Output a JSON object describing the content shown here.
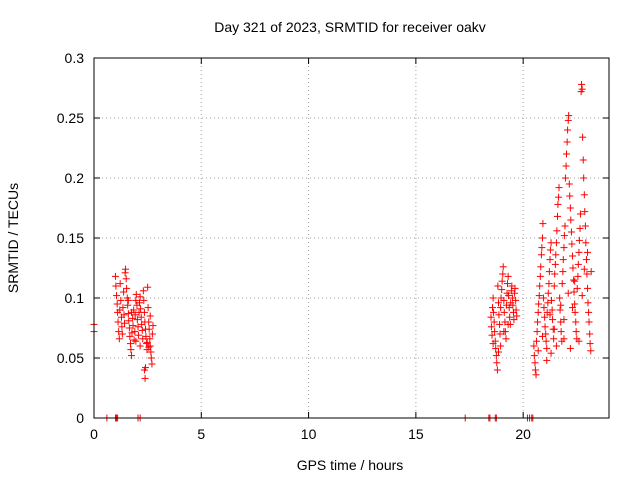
{
  "chart_data": {
    "type": "scatter",
    "title": "Day 321 of 2023, SRMTID for receiver oakv",
    "xlabel": "GPS time / hours",
    "ylabel": "SRMTID / TECUs",
    "xlim": [
      0,
      24
    ],
    "ylim": [
      0,
      0.3
    ],
    "xticks": [
      0,
      5,
      10,
      15,
      20
    ],
    "xtick_labels": [
      "0",
      "5",
      "10",
      "15",
      "20"
    ],
    "yticks": [
      0,
      0.05,
      0.1,
      0.15,
      0.2,
      0.25,
      0.3
    ],
    "ytick_labels": [
      "0",
      "0.05",
      "0.1",
      "0.15",
      "0.2",
      "0.25",
      "0.3"
    ],
    "grid": true,
    "marker": "+",
    "color": "#ff0000",
    "series": [
      {
        "name": "SRMTID",
        "points": [
          [
            0.0,
            0.078
          ],
          [
            0.0,
            0.072
          ],
          [
            0.6,
            0.0
          ],
          [
            1.0,
            0.0
          ],
          [
            1.05,
            0.0
          ],
          [
            1.1,
            0.0
          ],
          [
            2.05,
            0.0
          ],
          [
            2.15,
            0.0
          ],
          [
            17.3,
            0.0
          ],
          [
            18.4,
            0.0
          ],
          [
            18.45,
            0.0
          ],
          [
            18.7,
            0.0
          ],
          [
            18.75,
            0.0
          ],
          [
            20.2,
            0.0
          ],
          [
            20.3,
            0.0
          ],
          [
            20.4,
            0.0
          ],
          [
            20.45,
            0.0
          ],
          [
            1.0,
            0.118
          ],
          [
            1.02,
            0.11
          ],
          [
            1.05,
            0.102
          ],
          [
            1.08,
            0.095
          ],
          [
            1.1,
            0.088
          ],
          [
            1.12,
            0.08
          ],
          [
            1.15,
            0.072
          ],
          [
            1.18,
            0.066
          ],
          [
            1.2,
            0.09
          ],
          [
            1.22,
            0.112
          ],
          [
            1.25,
            0.098
          ],
          [
            1.28,
            0.084
          ],
          [
            1.3,
            0.076
          ],
          [
            1.32,
            0.07
          ],
          [
            1.35,
            0.092
          ],
          [
            1.38,
            0.105
          ],
          [
            1.4,
            0.086
          ],
          [
            1.42,
            0.079
          ],
          [
            1.45,
            0.121
          ],
          [
            1.47,
            0.124
          ],
          [
            1.5,
            0.116
          ],
          [
            1.52,
            0.108
          ],
          [
            1.55,
            0.1
          ],
          [
            1.57,
            0.094
          ],
          [
            1.6,
            0.087
          ],
          [
            1.62,
            0.081
          ],
          [
            1.65,
            0.075
          ],
          [
            1.67,
            0.068
          ],
          [
            1.7,
            0.062
          ],
          [
            1.72,
            0.057
          ],
          [
            1.75,
            0.052
          ],
          [
            1.77,
            0.071
          ],
          [
            1.8,
            0.083
          ],
          [
            1.82,
            0.077
          ],
          [
            1.85,
            0.09
          ],
          [
            1.87,
            0.065
          ],
          [
            1.9,
            0.072
          ],
          [
            1.92,
            0.086
          ],
          [
            1.95,
            0.098
          ],
          [
            1.97,
            0.103
          ],
          [
            2.0,
            0.094
          ],
          [
            2.02,
            0.082
          ],
          [
            2.05,
            0.076
          ],
          [
            2.07,
            0.069
          ],
          [
            2.1,
            0.088
          ],
          [
            2.12,
            0.096
          ],
          [
            2.15,
            0.101
          ],
          [
            2.17,
            0.091
          ],
          [
            2.2,
            0.084
          ],
          [
            2.22,
            0.078
          ],
          [
            2.25,
            0.073
          ],
          [
            2.27,
            0.066
          ],
          [
            2.3,
            0.106
          ],
          [
            2.32,
            0.098
          ],
          [
            2.35,
            0.088
          ],
          [
            2.37,
            0.08
          ],
          [
            2.4,
            0.074
          ],
          [
            2.42,
            0.068
          ],
          [
            2.45,
            0.062
          ],
          [
            2.47,
            0.057
          ],
          [
            2.35,
            0.04
          ],
          [
            2.38,
            0.033
          ],
          [
            2.4,
            0.042
          ],
          [
            2.5,
            0.109
          ],
          [
            2.52,
            0.092
          ],
          [
            2.55,
            0.08
          ],
          [
            2.57,
            0.074
          ],
          [
            2.6,
            0.066
          ],
          [
            2.62,
            0.06
          ],
          [
            2.65,
            0.055
          ],
          [
            2.67,
            0.05
          ],
          [
            2.7,
            0.045
          ],
          [
            2.72,
            0.07
          ],
          [
            2.75,
            0.077
          ],
          [
            2.62,
            0.085
          ],
          [
            2.55,
            0.059
          ],
          [
            2.48,
            0.063
          ],
          [
            1.6,
            0.098
          ],
          [
            1.75,
            0.088
          ],
          [
            1.95,
            0.064
          ],
          [
            2.15,
            0.06
          ],
          [
            18.5,
            0.084
          ],
          [
            18.52,
            0.076
          ],
          [
            18.55,
            0.069
          ],
          [
            18.57,
            0.092
          ],
          [
            18.6,
            0.1
          ],
          [
            18.62,
            0.088
          ],
          [
            18.65,
            0.08
          ],
          [
            18.67,
            0.072
          ],
          [
            18.7,
            0.064
          ],
          [
            18.72,
            0.058
          ],
          [
            18.75,
            0.052
          ],
          [
            18.77,
            0.046
          ],
          [
            18.8,
            0.04
          ],
          [
            18.82,
            0.11
          ],
          [
            18.85,
            0.096
          ],
          [
            18.87,
            0.086
          ],
          [
            18.9,
            0.078
          ],
          [
            18.92,
            0.07
          ],
          [
            18.95,
            0.092
          ],
          [
            18.97,
            0.1
          ],
          [
            19.0,
            0.107
          ],
          [
            19.02,
            0.114
          ],
          [
            19.05,
            0.12
          ],
          [
            19.07,
            0.126
          ],
          [
            19.1,
            0.098
          ],
          [
            19.12,
            0.088
          ],
          [
            19.15,
            0.08
          ],
          [
            19.17,
            0.072
          ],
          [
            19.2,
            0.066
          ],
          [
            19.22,
            0.094
          ],
          [
            19.25,
            0.104
          ],
          [
            19.27,
            0.112
          ],
          [
            19.3,
            0.118
          ],
          [
            19.32,
            0.102
          ],
          [
            19.35,
            0.092
          ],
          [
            19.37,
            0.084
          ],
          [
            19.4,
            0.078
          ],
          [
            19.42,
            0.096
          ],
          [
            19.45,
            0.106
          ],
          [
            19.47,
            0.11
          ],
          [
            19.5,
            0.1
          ],
          [
            19.52,
            0.094
          ],
          [
            19.55,
            0.088
          ],
          [
            19.57,
            0.082
          ],
          [
            19.6,
            0.104
          ],
          [
            19.62,
            0.108
          ],
          [
            19.65,
            0.098
          ],
          [
            19.67,
            0.09
          ],
          [
            19.7,
            0.085
          ],
          [
            18.6,
            0.062
          ],
          [
            18.85,
            0.055
          ],
          [
            18.95,
            0.06
          ],
          [
            19.1,
            0.072
          ],
          [
            19.3,
            0.078
          ],
          [
            20.5,
            0.06
          ],
          [
            20.52,
            0.052
          ],
          [
            20.55,
            0.046
          ],
          [
            20.57,
            0.04
          ],
          [
            20.6,
            0.036
          ],
          [
            20.62,
            0.064
          ],
          [
            20.65,
            0.072
          ],
          [
            20.67,
            0.08
          ],
          [
            20.7,
            0.088
          ],
          [
            20.72,
            0.095
          ],
          [
            20.75,
            0.102
          ],
          [
            20.77,
            0.11
          ],
          [
            20.8,
            0.118
          ],
          [
            20.82,
            0.126
          ],
          [
            20.85,
            0.136
          ],
          [
            20.87,
            0.142
          ],
          [
            20.9,
            0.15
          ],
          [
            20.92,
            0.162
          ],
          [
            20.95,
            0.1
          ],
          [
            20.97,
            0.092
          ],
          [
            21.0,
            0.084
          ],
          [
            21.02,
            0.076
          ],
          [
            21.05,
            0.07
          ],
          [
            21.07,
            0.064
          ],
          [
            21.1,
            0.058
          ],
          [
            21.12,
            0.088
          ],
          [
            21.15,
            0.096
          ],
          [
            21.17,
            0.104
          ],
          [
            21.2,
            0.112
          ],
          [
            21.22,
            0.122
          ],
          [
            21.25,
            0.132
          ],
          [
            21.27,
            0.14
          ],
          [
            21.3,
            0.146
          ],
          [
            21.32,
            0.098
          ],
          [
            21.35,
            0.09
          ],
          [
            21.37,
            0.082
          ],
          [
            21.4,
            0.074
          ],
          [
            21.42,
            0.066
          ],
          [
            21.45,
            0.11
          ],
          [
            21.47,
            0.12
          ],
          [
            21.5,
            0.128
          ],
          [
            21.52,
            0.136
          ],
          [
            21.55,
            0.146
          ],
          [
            21.57,
            0.156
          ],
          [
            21.6,
            0.168
          ],
          [
            21.62,
            0.178
          ],
          [
            21.65,
            0.184
          ],
          [
            21.67,
            0.192
          ],
          [
            21.7,
            0.1
          ],
          [
            21.72,
            0.09
          ],
          [
            21.75,
            0.08
          ],
          [
            21.77,
            0.072
          ],
          [
            21.8,
            0.064
          ],
          [
            21.82,
            0.112
          ],
          [
            21.85,
            0.122
          ],
          [
            21.87,
            0.132
          ],
          [
            21.9,
            0.142
          ],
          [
            21.92,
            0.152
          ],
          [
            21.95,
            0.16
          ],
          [
            21.97,
            0.2
          ],
          [
            22.0,
            0.21
          ],
          [
            22.02,
            0.22
          ],
          [
            22.05,
            0.23
          ],
          [
            22.07,
            0.24
          ],
          [
            22.1,
            0.248
          ],
          [
            22.12,
            0.252
          ],
          [
            22.15,
            0.195
          ],
          [
            22.17,
            0.185
          ],
          [
            22.2,
            0.175
          ],
          [
            22.22,
            0.165
          ],
          [
            22.25,
            0.155
          ],
          [
            22.27,
            0.145
          ],
          [
            22.3,
            0.135
          ],
          [
            22.32,
            0.125
          ],
          [
            22.35,
            0.115
          ],
          [
            22.37,
            0.105
          ],
          [
            22.4,
            0.095
          ],
          [
            22.42,
            0.088
          ],
          [
            22.45,
            0.08
          ],
          [
            22.47,
            0.072
          ],
          [
            22.5,
            0.066
          ],
          [
            22.52,
            0.108
          ],
          [
            22.55,
            0.118
          ],
          [
            22.57,
            0.128
          ],
          [
            22.6,
            0.138
          ],
          [
            22.62,
            0.148
          ],
          [
            22.65,
            0.158
          ],
          [
            22.67,
            0.17
          ],
          [
            22.7,
            0.272
          ],
          [
            22.72,
            0.278
          ],
          [
            22.75,
            0.274
          ],
          [
            22.77,
            0.234
          ],
          [
            22.8,
            0.215
          ],
          [
            22.82,
            0.2
          ],
          [
            22.85,
            0.186
          ],
          [
            22.87,
            0.172
          ],
          [
            22.9,
            0.16
          ],
          [
            22.92,
            0.146
          ],
          [
            22.95,
            0.132
          ],
          [
            22.97,
            0.12
          ],
          [
            23.0,
            0.108
          ],
          [
            23.02,
            0.096
          ],
          [
            23.05,
            0.088
          ],
          [
            23.07,
            0.08
          ],
          [
            23.1,
            0.07
          ],
          [
            23.12,
            0.062
          ],
          [
            23.15,
            0.056
          ],
          [
            23.17,
            0.122
          ],
          [
            21.1,
            0.048
          ],
          [
            21.3,
            0.054
          ],
          [
            21.55,
            0.06
          ],
          [
            21.9,
            0.066
          ],
          [
            22.2,
            0.058
          ],
          [
            22.6,
            0.064
          ],
          [
            20.7,
            0.056
          ],
          [
            20.9,
            0.068
          ],
          [
            21.25,
            0.086
          ],
          [
            21.75,
            0.094
          ],
          [
            22.1,
            0.104
          ],
          [
            22.4,
            0.114
          ],
          [
            22.85,
            0.124
          ],
          [
            23.0,
            0.138
          ],
          [
            21.45,
            0.074
          ],
          [
            21.9,
            0.082
          ],
          [
            22.3,
            0.092
          ],
          [
            22.75,
            0.102
          ]
        ]
      }
    ]
  }
}
